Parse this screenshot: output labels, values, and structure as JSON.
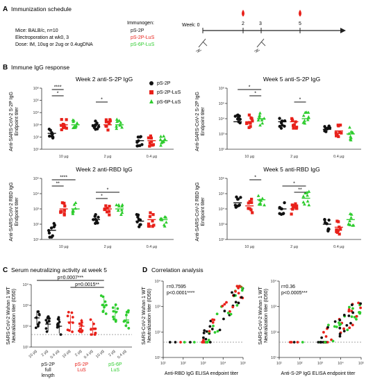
{
  "colors": {
    "black": "#111111",
    "red": "#e8211a",
    "green": "#2ecc2e"
  },
  "panelA": {
    "letter": "A",
    "title": "Immunization schedule",
    "lines": [
      "Mice: BALB/c, n=10",
      "Electroporation at wk0, 3",
      "Dose: IM, 10ug or 2ug or 0.4ugDNA"
    ],
    "immunogen_label": "Immunogen:",
    "immunogens": [
      "pS-2P",
      "pS-2P-LuS",
      "pS-6P-LuS"
    ],
    "week_label": "Week: 0",
    "weeks": [
      "2",
      "3",
      "5"
    ],
    "icons": [
      "syringe-icon",
      "blood-drop-icon"
    ]
  },
  "panelB": {
    "letter": "B",
    "title": "Immune IgG response",
    "legend": [
      "pS-2P",
      "pS-2P-LuS",
      "pS-6P-LuS"
    ],
    "doses": [
      "10 µg",
      "2 µg",
      "0.4 µg"
    ],
    "titer_label": "Endpoint titer",
    "charts": [
      {
        "title": "Week 2 anti-S-2P IgG",
        "ylabel": "Anti-SARS-CoV-2 S-2P IgG",
        "yticks": [
          "10⁶",
          "10⁵",
          "10⁴",
          "10³",
          "10²",
          "10¹"
        ],
        "ylog": [
          1,
          6
        ],
        "sig": [
          {
            "from": 0,
            "to": 1,
            "group": 0,
            "label": "****"
          },
          {
            "from": 0,
            "to": 1,
            "group": 0,
            "label": "*"
          },
          {
            "from": 0,
            "to": 1,
            "group": 1,
            "label": "*"
          }
        ],
        "medians": [
          [
            2.3,
            3.0,
            3.0
          ],
          [
            3.0,
            3.0,
            3.0
          ],
          [
            1.7,
            1.7,
            1.7
          ]
        ]
      },
      {
        "title": "Week 5 anti-S-2P IgG",
        "ylabel": "Anti-SARS-CoV-2 S-2P IgG",
        "yticks": [
          "10⁶",
          "10⁵",
          "10⁴",
          "10³",
          "10²"
        ],
        "ylog": [
          2,
          6
        ],
        "sig": [
          {
            "from": 0,
            "to": 2,
            "group": 0,
            "label": "*"
          },
          {
            "from": 1,
            "to": 2,
            "group": 0,
            "label": "*"
          },
          {
            "from": 1,
            "to": 2,
            "group": 1,
            "label": "*"
          }
        ],
        "medians": [
          [
            3.8,
            3.8,
            4.0
          ],
          [
            3.8,
            3.8,
            4.0
          ],
          [
            3.3,
            3.2,
            3.0
          ]
        ]
      },
      {
        "title": "Week 2 anti-RBD IgG",
        "ylabel": "Anti-SARS-CoV-2 RBD IgG",
        "yticks": [
          "10⁵",
          "10⁴",
          "10³",
          "10²",
          "10¹"
        ],
        "ylog": [
          1,
          5
        ],
        "sig": [
          {
            "from": 0,
            "to": 2,
            "group": 0,
            "label": "****"
          },
          {
            "from": 0,
            "to": 1,
            "group": 0,
            "label": "**"
          },
          {
            "from": 0,
            "to": 2,
            "group": 1,
            "label": "*"
          },
          {
            "from": 0,
            "to": 1,
            "group": 1,
            "label": "*"
          }
        ],
        "medians": [
          [
            1.6,
            3.0,
            3.0
          ],
          [
            2.3,
            3.0,
            3.0
          ],
          [
            2.2,
            2.3,
            2.3
          ]
        ]
      },
      {
        "title": "Week 5 anti-RBD IgG",
        "ylabel": "Anti-SARS-CoV-2 RBD IgG",
        "yticks": [
          "10⁶",
          "10⁵",
          "10⁴",
          "10³",
          "10²"
        ],
        "ylog": [
          2,
          6
        ],
        "sig": [
          {
            "from": 1,
            "to": 2,
            "group": 0,
            "label": "*"
          },
          {
            "from": 0,
            "to": 2,
            "group": 1,
            "label": "*"
          },
          {
            "from": 1,
            "to": 2,
            "group": 1,
            "label": "**"
          }
        ],
        "medians": [
          [
            4.4,
            4.2,
            4.6
          ],
          [
            4.0,
            4.0,
            4.7
          ],
          [
            3.0,
            2.8,
            3.3
          ]
        ]
      }
    ]
  },
  "panelC": {
    "letter": "C",
    "title": "Serum neutralizing activity at week 5",
    "ylabel": "SARS-CoV-2 Wuhan 1 WT",
    "ylabel2": "Neutralization titer (ID50)",
    "yticks": [
      "10⁴",
      "10³",
      "10²",
      "10¹"
    ],
    "pvals": [
      "p=0.0007***",
      "p=0.0015**"
    ],
    "xticks": [
      "10 µg",
      "2 µg",
      "0.4 µg",
      "10 µg",
      "2 µg",
      "0.4 µg",
      "10 µg",
      "2 µg",
      "0.4 µg"
    ],
    "groups": [
      {
        "lines": [
          "pS-2P",
          "full",
          "length"
        ]
      },
      {
        "lines": [
          "pS-2P",
          "LuS"
        ]
      },
      {
        "lines": [
          "pS-6P",
          "LuS"
        ]
      }
    ],
    "medians": [
      2.4,
      2.1,
      2.0,
      2.2,
      2.0,
      1.9,
      3.0,
      2.7,
      2.3
    ]
  },
  "panelD": {
    "letter": "D",
    "title": "Correlation analysis",
    "ylabel": "SARS-CoV-2 Wuhan 1 WT",
    "ylabel2": "Neutralization titer (ID50)",
    "yticks": [
      "10⁴",
      "10³",
      "10²",
      "10¹"
    ],
    "xticks": [
      "10¹",
      "10²",
      "10³",
      "10⁴",
      "10⁵"
    ],
    "plots": [
      {
        "r": "r=0.7595",
        "p": "p<0.0001****",
        "xlabel": "Anti-RBD IgG ELISA endpoint titer"
      },
      {
        "r": "r=0.36",
        "p": "p<0.0005***",
        "xlabel": "Anti-S-2P IgG ELISA endpoint titer"
      }
    ]
  }
}
